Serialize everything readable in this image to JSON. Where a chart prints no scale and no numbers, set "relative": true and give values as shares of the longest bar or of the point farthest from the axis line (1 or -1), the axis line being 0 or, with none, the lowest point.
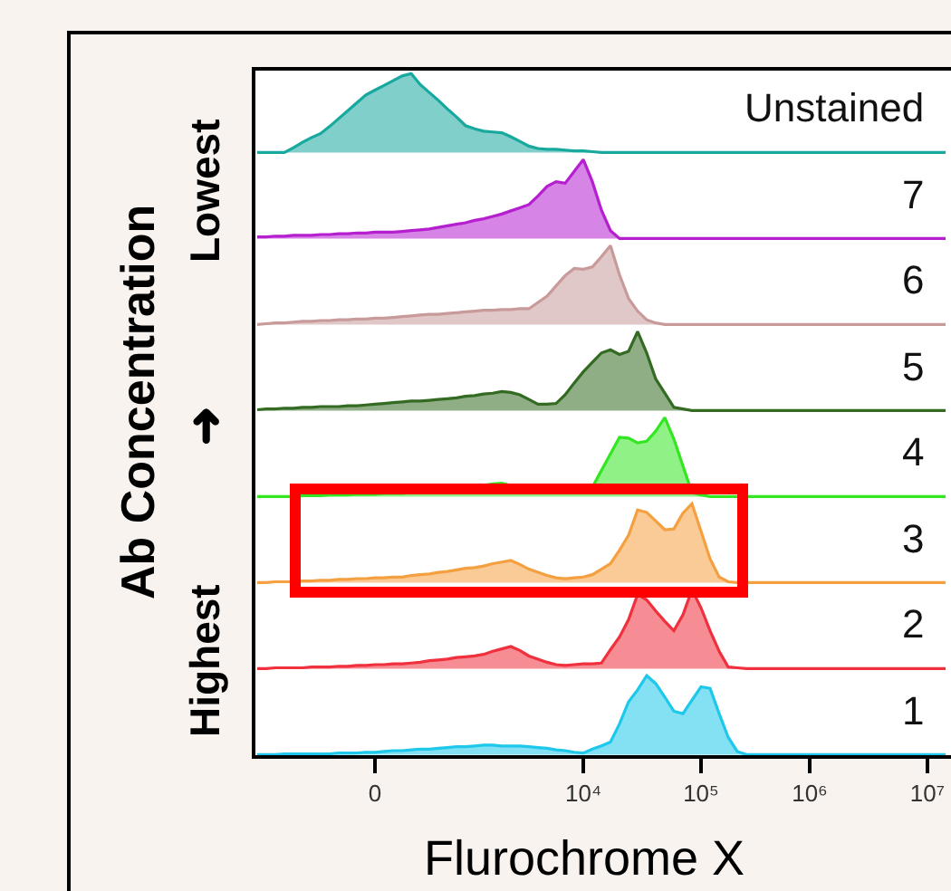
{
  "chart_data": [
    {
      "type": "area",
      "relative": true,
      "categories": [
        null,
        null,
        null,
        null,
        null,
        null,
        null,
        null,
        null,
        null,
        null,
        null,
        null,
        null,
        null,
        null,
        null,
        null,
        null,
        null,
        null,
        null,
        null,
        null,
        null,
        null,
        null,
        null,
        null,
        null,
        null,
        null,
        null,
        null,
        null,
        null,
        null,
        null,
        null,
        null,
        null,
        null,
        null,
        null,
        null,
        null,
        null,
        null,
        null,
        null,
        null,
        null,
        null,
        null,
        null,
        null,
        null,
        null,
        null,
        null,
        null,
        null,
        null,
        null,
        null,
        null,
        null,
        null,
        null,
        null,
        null,
        null,
        null,
        null,
        null,
        null,
        null
      ],
      "series": [
        {
          "name": "Unstained",
          "color": "#17a89e",
          "values": [
            0,
            0,
            0,
            0,
            0.06,
            0.13,
            0.19,
            0.24,
            0.33,
            0.43,
            0.53,
            0.63,
            0.73,
            0.79,
            0.85,
            0.91,
            0.97,
            1,
            0.86,
            0.76,
            0.66,
            0.55,
            0.45,
            0.34,
            0.3,
            0.27,
            0.26,
            0.25,
            0.2,
            0.14,
            0.08,
            0.05,
            0.04,
            0.04,
            0.03,
            0.02,
            0.02,
            0.01,
            0,
            0,
            0,
            0,
            0,
            0,
            0,
            0,
            0,
            0,
            0,
            0,
            0,
            0,
            0,
            0,
            0,
            0,
            0,
            0,
            0,
            0,
            0,
            0,
            0,
            0,
            0,
            0,
            0,
            0,
            0,
            0,
            0,
            0,
            0,
            0,
            0,
            0,
            0
          ]
        }
      ]
    },
    {
      "type": "area",
      "relative": true,
      "categories": [
        null,
        null,
        null,
        null,
        null,
        null,
        null,
        null,
        null,
        null,
        null,
        null,
        null,
        null,
        null,
        null,
        null,
        null,
        null,
        null,
        null,
        null,
        null,
        null,
        null,
        null,
        null,
        null,
        null,
        null,
        null,
        null,
        null,
        null,
        null,
        null,
        null,
        null,
        null,
        null,
        null,
        null,
        null,
        null,
        null,
        null,
        null,
        null,
        null,
        null,
        null,
        null,
        null,
        null,
        null,
        null,
        null,
        null,
        null,
        null,
        null,
        null,
        null,
        null,
        null,
        null,
        null,
        null,
        null,
        null,
        null,
        null,
        null,
        null,
        null,
        null,
        null
      ],
      "series": [
        {
          "name": "7",
          "color": "#b51fcf",
          "values": [
            0.02,
            0.02,
            0.03,
            0.03,
            0.04,
            0.04,
            0.04,
            0.05,
            0.05,
            0.06,
            0.06,
            0.07,
            0.07,
            0.08,
            0.08,
            0.08,
            0.09,
            0.1,
            0.11,
            0.12,
            0.14,
            0.16,
            0.18,
            0.2,
            0.23,
            0.25,
            0.28,
            0.31,
            0.35,
            0.39,
            0.43,
            0.54,
            0.66,
            0.72,
            0.7,
            0.85,
            1,
            0.72,
            0.36,
            0.1,
            0,
            0,
            0,
            0,
            0,
            0,
            0,
            0,
            0,
            0,
            0,
            0,
            0,
            0,
            0,
            0,
            0,
            0,
            0,
            0,
            0,
            0,
            0,
            0,
            0,
            0,
            0,
            0,
            0,
            0,
            0,
            0,
            0,
            0,
            0,
            0,
            0
          ]
        }
      ]
    },
    {
      "type": "area",
      "relative": true,
      "categories": [
        null,
        null,
        null,
        null,
        null,
        null,
        null,
        null,
        null,
        null,
        null,
        null,
        null,
        null,
        null,
        null,
        null,
        null,
        null,
        null,
        null,
        null,
        null,
        null,
        null,
        null,
        null,
        null,
        null,
        null,
        null,
        null,
        null,
        null,
        null,
        null,
        null,
        null,
        null,
        null,
        null,
        null,
        null,
        null,
        null,
        null,
        null,
        null,
        null,
        null,
        null,
        null,
        null,
        null,
        null,
        null,
        null,
        null,
        null,
        null,
        null,
        null,
        null,
        null,
        null,
        null,
        null,
        null,
        null,
        null,
        null,
        null,
        null,
        null,
        null,
        null,
        null
      ],
      "series": [
        {
          "name": "6",
          "color": "#c89a9a",
          "values": [
            0,
            0.01,
            0.02,
            0.02,
            0.03,
            0.04,
            0.04,
            0.05,
            0.05,
            0.06,
            0.06,
            0.07,
            0.07,
            0.08,
            0.08,
            0.09,
            0.1,
            0.11,
            0.12,
            0.13,
            0.13,
            0.14,
            0.15,
            0.16,
            0.17,
            0.18,
            0.18,
            0.19,
            0.19,
            0.2,
            0.2,
            0.28,
            0.36,
            0.49,
            0.62,
            0.71,
            0.7,
            0.73,
            0.86,
            1,
            0.63,
            0.33,
            0.17,
            0.06,
            0.02,
            0,
            0,
            0,
            0,
            0,
            0,
            0,
            0,
            0,
            0,
            0,
            0,
            0,
            0,
            0,
            0,
            0,
            0,
            0,
            0,
            0,
            0,
            0,
            0,
            0,
            0,
            0,
            0,
            0,
            0,
            0,
            0
          ]
        }
      ]
    },
    {
      "type": "area",
      "relative": true,
      "categories": [
        null,
        null,
        null,
        null,
        null,
        null,
        null,
        null,
        null,
        null,
        null,
        null,
        null,
        null,
        null,
        null,
        null,
        null,
        null,
        null,
        null,
        null,
        null,
        null,
        null,
        null,
        null,
        null,
        null,
        null,
        null,
        null,
        null,
        null,
        null,
        null,
        null,
        null,
        null,
        null,
        null,
        null,
        null,
        null,
        null,
        null,
        null,
        null,
        null,
        null,
        null,
        null,
        null,
        null,
        null,
        null,
        null,
        null,
        null,
        null,
        null,
        null,
        null,
        null,
        null,
        null,
        null,
        null,
        null,
        null,
        null,
        null,
        null,
        null,
        null,
        null,
        null
      ],
      "series": [
        {
          "name": "5",
          "color": "#336b22",
          "values": [
            0.01,
            0.02,
            0.02,
            0.03,
            0.03,
            0.04,
            0.04,
            0.05,
            0.05,
            0.05,
            0.06,
            0.06,
            0.07,
            0.08,
            0.09,
            0.1,
            0.11,
            0.12,
            0.12,
            0.13,
            0.14,
            0.15,
            0.16,
            0.18,
            0.19,
            0.21,
            0.22,
            0.24,
            0.23,
            0.2,
            0.14,
            0.08,
            0.08,
            0.09,
            0.2,
            0.35,
            0.49,
            0.61,
            0.73,
            0.77,
            0.71,
            0.75,
            1,
            0.73,
            0.4,
            0.22,
            0.04,
            0.02,
            0,
            0,
            0,
            0,
            0,
            0,
            0,
            0,
            0,
            0,
            0,
            0,
            0,
            0,
            0,
            0,
            0,
            0,
            0,
            0,
            0,
            0,
            0,
            0,
            0,
            0,
            0,
            0,
            0
          ]
        }
      ]
    },
    {
      "type": "area",
      "relative": true,
      "categories": [
        null,
        null,
        null,
        null,
        null,
        null,
        null,
        null,
        null,
        null,
        null,
        null,
        null,
        null,
        null,
        null,
        null,
        null,
        null,
        null,
        null,
        null,
        null,
        null,
        null,
        null,
        null,
        null,
        null,
        null,
        null,
        null,
        null,
        null,
        null,
        null,
        null,
        null,
        null,
        null,
        null,
        null,
        null,
        null,
        null,
        null,
        null,
        null,
        null,
        null,
        null,
        null,
        null,
        null,
        null,
        null,
        null,
        null,
        null,
        null,
        null,
        null,
        null,
        null,
        null,
        null,
        null,
        null,
        null,
        null,
        null,
        null,
        null,
        null,
        null,
        null,
        null
      ],
      "series": [
        {
          "name": "4",
          "color": "#33e622",
          "values": [
            0,
            0,
            0,
            0,
            0,
            0.01,
            0.01,
            0.01,
            0.02,
            0.02,
            0.02,
            0.03,
            0.03,
            0.03,
            0.04,
            0.04,
            0.04,
            0.05,
            0.05,
            0.06,
            0.08,
            0.09,
            0.1,
            0.12,
            0.13,
            0.14,
            0.16,
            0.17,
            0.14,
            0.11,
            0.07,
            0.08,
            0.08,
            0.09,
            0.1,
            0.11,
            0.11,
            0.12,
            0.33,
            0.54,
            0.75,
            0.74,
            0.68,
            0.7,
            0.83,
            1,
            0.73,
            0.39,
            0.05,
            0.02,
            0,
            0,
            0,
            0,
            0,
            0,
            0,
            0,
            0,
            0,
            0,
            0,
            0,
            0,
            0,
            0,
            0,
            0,
            0,
            0,
            0,
            0,
            0,
            0,
            0,
            0,
            0
          ]
        }
      ]
    },
    {
      "type": "area",
      "relative": true,
      "categories": [
        null,
        null,
        null,
        null,
        null,
        null,
        null,
        null,
        null,
        null,
        null,
        null,
        null,
        null,
        null,
        null,
        null,
        null,
        null,
        null,
        null,
        null,
        null,
        null,
        null,
        null,
        null,
        null,
        null,
        null,
        null,
        null,
        null,
        null,
        null,
        null,
        null,
        null,
        null,
        null,
        null,
        null,
        null,
        null,
        null,
        null,
        null,
        null,
        null,
        null,
        null,
        null,
        null,
        null,
        null,
        null,
        null,
        null,
        null,
        null,
        null,
        null,
        null,
        null,
        null,
        null,
        null,
        null,
        null,
        null,
        null,
        null,
        null,
        null,
        null,
        null,
        null
      ],
      "series": [
        {
          "name": "3",
          "color": "#f5a040",
          "values": [
            0,
            0,
            0.01,
            0.01,
            0.01,
            0.02,
            0.02,
            0.03,
            0.03,
            0.04,
            0.04,
            0.05,
            0.05,
            0.06,
            0.06,
            0.07,
            0.07,
            0.09,
            0.1,
            0.11,
            0.13,
            0.14,
            0.16,
            0.18,
            0.19,
            0.21,
            0.24,
            0.26,
            0.28,
            0.23,
            0.17,
            0.13,
            0.09,
            0.06,
            0.05,
            0.06,
            0.07,
            0.1,
            0.17,
            0.24,
            0.41,
            0.6,
            0.92,
            0.89,
            0.78,
            0.67,
            0.68,
            0.88,
            1,
            0.65,
            0.3,
            0.07,
            0.01,
            0,
            0,
            0,
            0,
            0,
            0,
            0,
            0,
            0,
            0,
            0,
            0,
            0,
            0,
            0,
            0,
            0,
            0,
            0,
            0,
            0,
            0,
            0,
            0
          ]
        }
      ]
    },
    {
      "type": "area",
      "relative": true,
      "categories": [
        null,
        null,
        null,
        null,
        null,
        null,
        null,
        null,
        null,
        null,
        null,
        null,
        null,
        null,
        null,
        null,
        null,
        null,
        null,
        null,
        null,
        null,
        null,
        null,
        null,
        null,
        null,
        null,
        null,
        null,
        null,
        null,
        null,
        null,
        null,
        null,
        null,
        null,
        null,
        null,
        null,
        null,
        null,
        null,
        null,
        null,
        null,
        null,
        null,
        null,
        null,
        null,
        null,
        null,
        null,
        null,
        null,
        null,
        null,
        null,
        null,
        null,
        null,
        null,
        null,
        null,
        null,
        null,
        null,
        null,
        null,
        null,
        null,
        null,
        null,
        null,
        null
      ],
      "series": [
        {
          "name": "2",
          "color": "#f0303c",
          "values": [
            0,
            0,
            0.01,
            0.01,
            0.01,
            0.01,
            0.02,
            0.02,
            0.02,
            0.03,
            0.03,
            0.04,
            0.04,
            0.05,
            0.05,
            0.06,
            0.06,
            0.07,
            0.08,
            0.1,
            0.11,
            0.12,
            0.14,
            0.15,
            0.16,
            0.18,
            0.22,
            0.25,
            0.28,
            0.23,
            0.16,
            0.12,
            0.08,
            0.05,
            0.04,
            0.05,
            0.06,
            0.06,
            0.07,
            0.24,
            0.4,
            0.62,
            0.94,
            0.87,
            0.73,
            0.6,
            0.48,
            0.68,
            1,
            0.77,
            0.48,
            0.22,
            0.02,
            0.01,
            0,
            0,
            0,
            0,
            0,
            0,
            0,
            0,
            0,
            0,
            0,
            0,
            0,
            0,
            0,
            0,
            0,
            0,
            0,
            0,
            0,
            0,
            0
          ]
        }
      ]
    },
    {
      "type": "area",
      "relative": true,
      "categories": [
        null,
        null,
        null,
        null,
        null,
        null,
        null,
        null,
        null,
        null,
        null,
        null,
        null,
        "0",
        null,
        null,
        null,
        null,
        null,
        null,
        null,
        null,
        null,
        null,
        null,
        null,
        null,
        null,
        null,
        null,
        null,
        null,
        null,
        null,
        null,
        null,
        "10⁴",
        null,
        null,
        null,
        null,
        null,
        null,
        null,
        null,
        null,
        null,
        null,
        null,
        "10⁵",
        null,
        null,
        null,
        null,
        null,
        null,
        null,
        null,
        null,
        null,
        null,
        "10⁶",
        null,
        null,
        null,
        null,
        null,
        null,
        null,
        null,
        null,
        null,
        null,
        null,
        "10⁷",
        null,
        null
      ],
      "xlabel": "Flurochrome X",
      "ylabel": "Ab Concentration",
      "annotations": [
        "Highest ➜ Lowest"
      ],
      "series": [
        {
          "name": "1",
          "color": "#1ec8ea",
          "values": [
            0,
            0,
            0,
            0.01,
            0.01,
            0.01,
            0.01,
            0.01,
            0.01,
            0.02,
            0.02,
            0.02,
            0.03,
            0.03,
            0.04,
            0.05,
            0.05,
            0.06,
            0.07,
            0.07,
            0.08,
            0.09,
            0.1,
            0.1,
            0.11,
            0.12,
            0.12,
            0.11,
            0.11,
            0.11,
            0.1,
            0.09,
            0.08,
            0.06,
            0.05,
            0.03,
            0.02,
            0.07,
            0.11,
            0.16,
            0.39,
            0.67,
            0.82,
            1,
            0.9,
            0.73,
            0.55,
            0.52,
            0.69,
            0.86,
            0.84,
            0.52,
            0.22,
            0.04,
            0,
            0,
            0,
            0,
            0,
            0,
            0,
            0,
            0,
            0,
            0,
            0,
            0,
            0,
            0,
            0,
            0,
            0,
            0,
            0,
            0,
            0,
            0
          ]
        }
      ]
    }
  ]
}
